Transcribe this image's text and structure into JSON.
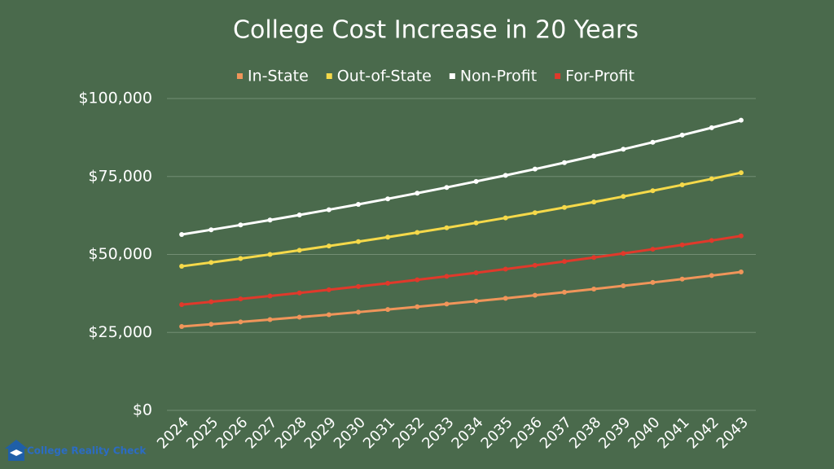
{
  "chart_data": {
    "type": "line",
    "title": "College Cost Increase in 20 Years",
    "categories": [
      "2024",
      "2025",
      "2026",
      "2027",
      "2028",
      "2029",
      "2030",
      "2031",
      "2032",
      "2033",
      "2034",
      "2035",
      "2036",
      "2037",
      "2038",
      "2039",
      "2040",
      "2041",
      "2042",
      "2043"
    ],
    "series": [
      {
        "name": "In-State",
        "color": "#f0955a",
        "values": [
          26900,
          27620,
          28360,
          29110,
          29890,
          30690,
          31510,
          32350,
          33210,
          34100,
          35010,
          35940,
          36900,
          37890,
          38900,
          39940,
          41010,
          42100,
          43230,
          44380
        ]
      },
      {
        "name": "Out-of-State",
        "color": "#f5d94a",
        "values": [
          46200,
          47430,
          48700,
          50000,
          51340,
          52700,
          54110,
          55560,
          57040,
          58560,
          60130,
          61730,
          63380,
          65070,
          66810,
          68590,
          70430,
          72310,
          74240,
          76220
        ]
      },
      {
        "name": "Non-Profit",
        "color": "#ffffff",
        "values": [
          56400,
          57910,
          59450,
          61040,
          62670,
          64340,
          66060,
          67830,
          69640,
          71490,
          73410,
          75360,
          77370,
          79440,
          81560,
          83740,
          85980,
          88270,
          90630,
          93050
        ]
      },
      {
        "name": "For-Profit",
        "color": "#e0392b",
        "values": [
          33900,
          34810,
          35730,
          36690,
          37670,
          38670,
          39710,
          40770,
          41860,
          42970,
          44120,
          45300,
          46510,
          47750,
          49020,
          50330,
          51680,
          53060,
          54470,
          55930
        ]
      }
    ],
    "ylim": [
      0,
      100000
    ],
    "yticks": [
      {
        "value": 0,
        "label": "$0"
      },
      {
        "value": 25000,
        "label": "$25,000"
      },
      {
        "value": 50000,
        "label": "$50,000"
      },
      {
        "value": 75000,
        "label": "$75,000"
      },
      {
        "value": 100000,
        "label": "$100,000"
      }
    ],
    "grid": true,
    "legend": "top",
    "watermark": "College Reality Check"
  }
}
